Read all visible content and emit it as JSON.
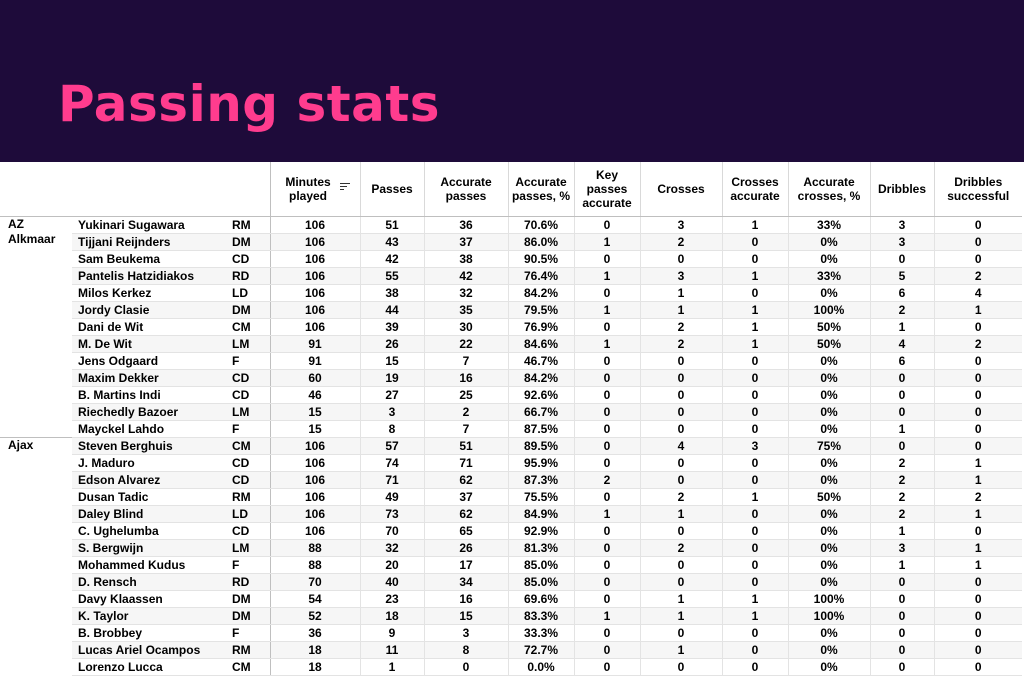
{
  "title": "Passing stats",
  "colors": {
    "banner_bg": "#1e0b3a",
    "title": "#ff3c8e"
  },
  "headers": {
    "minutes": "Minutes played",
    "passes": "Passes",
    "accurate_passes": "Accurate passes",
    "accurate_passes_pct": "Accurate passes, %",
    "key_passes": "Key passes accurate",
    "crosses": "Crosses",
    "crosses_accurate": "Crosses accurate",
    "accurate_crosses_pct": "Accurate crosses, %",
    "dribbles": "Dribbles",
    "dribbles_successful": "Dribbles successful",
    "sort_icon": "sort-filter-icon"
  },
  "teams": [
    {
      "name": "AZ Alkmaar",
      "players": [
        [
          "Yukinari Sugawara",
          "RM",
          "106",
          "51",
          "36",
          "70.6%",
          "0",
          "3",
          "1",
          "33%",
          "3",
          "0"
        ],
        [
          "Tijjani Reijnders",
          "DM",
          "106",
          "43",
          "37",
          "86.0%",
          "1",
          "2",
          "0",
          "0%",
          "3",
          "0"
        ],
        [
          "Sam Beukema",
          "CD",
          "106",
          "42",
          "38",
          "90.5%",
          "0",
          "0",
          "0",
          "0%",
          "0",
          "0"
        ],
        [
          "Pantelis Hatzidiakos",
          "RD",
          "106",
          "55",
          "42",
          "76.4%",
          "1",
          "3",
          "1",
          "33%",
          "5",
          "2"
        ],
        [
          "Milos Kerkez",
          "LD",
          "106",
          "38",
          "32",
          "84.2%",
          "0",
          "1",
          "0",
          "0%",
          "6",
          "4"
        ],
        [
          "Jordy Clasie",
          "DM",
          "106",
          "44",
          "35",
          "79.5%",
          "1",
          "1",
          "1",
          "100%",
          "2",
          "1"
        ],
        [
          "Dani de Wit",
          "CM",
          "106",
          "39",
          "30",
          "76.9%",
          "0",
          "2",
          "1",
          "50%",
          "1",
          "0"
        ],
        [
          "M. De Wit",
          "LM",
          "91",
          "26",
          "22",
          "84.6%",
          "1",
          "2",
          "1",
          "50%",
          "4",
          "2"
        ],
        [
          "Jens Odgaard",
          "F",
          "91",
          "15",
          "7",
          "46.7%",
          "0",
          "0",
          "0",
          "0%",
          "6",
          "0"
        ],
        [
          "Maxim Dekker",
          "CD",
          "60",
          "19",
          "16",
          "84.2%",
          "0",
          "0",
          "0",
          "0%",
          "0",
          "0"
        ],
        [
          "B. Martins Indi",
          "CD",
          "46",
          "27",
          "25",
          "92.6%",
          "0",
          "0",
          "0",
          "0%",
          "0",
          "0"
        ],
        [
          "Riechedly Bazoer",
          "LM",
          "15",
          "3",
          "2",
          "66.7%",
          "0",
          "0",
          "0",
          "0%",
          "0",
          "0"
        ],
        [
          "Mayckel Lahdo",
          "F",
          "15",
          "8",
          "7",
          "87.5%",
          "0",
          "0",
          "0",
          "0%",
          "1",
          "0"
        ]
      ]
    },
    {
      "name": "Ajax",
      "players": [
        [
          "Steven Berghuis",
          "CM",
          "106",
          "57",
          "51",
          "89.5%",
          "0",
          "4",
          "3",
          "75%",
          "0",
          "0"
        ],
        [
          "J. Maduro",
          "CD",
          "106",
          "74",
          "71",
          "95.9%",
          "0",
          "0",
          "0",
          "0%",
          "2",
          "1"
        ],
        [
          "Edson Alvarez",
          "CD",
          "106",
          "71",
          "62",
          "87.3%",
          "2",
          "0",
          "0",
          "0%",
          "2",
          "1"
        ],
        [
          "Dusan Tadic",
          "RM",
          "106",
          "49",
          "37",
          "75.5%",
          "0",
          "2",
          "1",
          "50%",
          "2",
          "2"
        ],
        [
          "Daley Blind",
          "LD",
          "106",
          "73",
          "62",
          "84.9%",
          "1",
          "1",
          "0",
          "0%",
          "2",
          "1"
        ],
        [
          "C. Ughelumba",
          "CD",
          "106",
          "70",
          "65",
          "92.9%",
          "0",
          "0",
          "0",
          "0%",
          "1",
          "0"
        ],
        [
          "S. Bergwijn",
          "LM",
          "88",
          "32",
          "26",
          "81.3%",
          "0",
          "2",
          "0",
          "0%",
          "3",
          "1"
        ],
        [
          "Mohammed Kudus",
          "F",
          "88",
          "20",
          "17",
          "85.0%",
          "0",
          "0",
          "0",
          "0%",
          "1",
          "1"
        ],
        [
          "D. Rensch",
          "RD",
          "70",
          "40",
          "34",
          "85.0%",
          "0",
          "0",
          "0",
          "0%",
          "0",
          "0"
        ],
        [
          "Davy Klaassen",
          "DM",
          "54",
          "23",
          "16",
          "69.6%",
          "0",
          "1",
          "1",
          "100%",
          "0",
          "0"
        ],
        [
          "K. Taylor",
          "DM",
          "52",
          "18",
          "15",
          "83.3%",
          "1",
          "1",
          "1",
          "100%",
          "0",
          "0"
        ],
        [
          "B. Brobbey",
          "F",
          "36",
          "9",
          "3",
          "33.3%",
          "0",
          "0",
          "0",
          "0%",
          "0",
          "0"
        ],
        [
          "Lucas Ariel Ocampos",
          "RM",
          "18",
          "11",
          "8",
          "72.7%",
          "0",
          "1",
          "0",
          "0%",
          "0",
          "0"
        ],
        [
          "Lorenzo Lucca",
          "CM",
          "18",
          "1",
          "0",
          "0.0%",
          "0",
          "0",
          "0",
          "0%",
          "0",
          "0"
        ]
      ]
    }
  ]
}
